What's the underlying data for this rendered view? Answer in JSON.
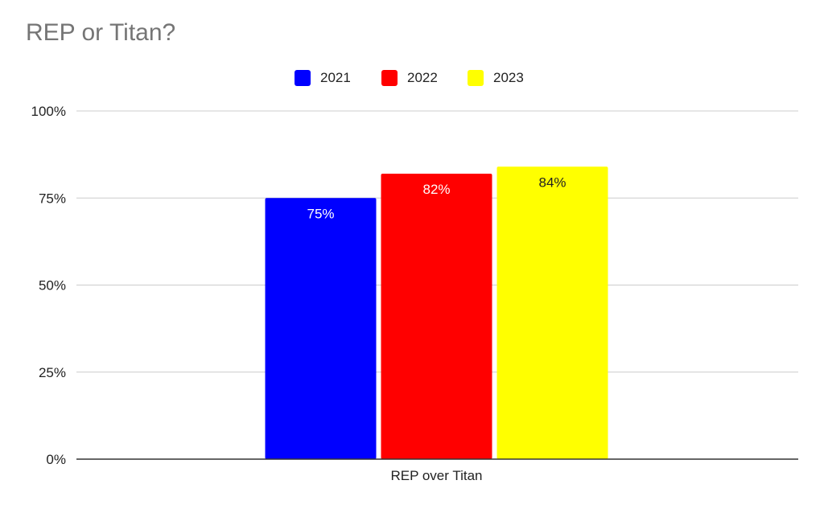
{
  "chart_data": {
    "type": "bar",
    "title": "REP or Titan?",
    "categories": [
      "REP over Titan"
    ],
    "series": [
      {
        "name": "2021",
        "values": [
          75
        ],
        "color": "#0000ff",
        "label": "75%",
        "label_color": "#ffffff"
      },
      {
        "name": "2022",
        "values": [
          82
        ],
        "color": "#ff0000",
        "label": "82%",
        "label_color": "#ffffff"
      },
      {
        "name": "2023",
        "values": [
          84
        ],
        "color": "#ffff00",
        "label": "84%",
        "label_color": "#222222"
      }
    ],
    "ylim": [
      0,
      100
    ],
    "yticks": [
      {
        "value": 0,
        "label": "0%"
      },
      {
        "value": 25,
        "label": "25%"
      },
      {
        "value": 50,
        "label": "50%"
      },
      {
        "value": 75,
        "label": "75%"
      },
      {
        "value": 100,
        "label": "100%"
      }
    ],
    "grid": true,
    "legend_position": "top-center"
  }
}
